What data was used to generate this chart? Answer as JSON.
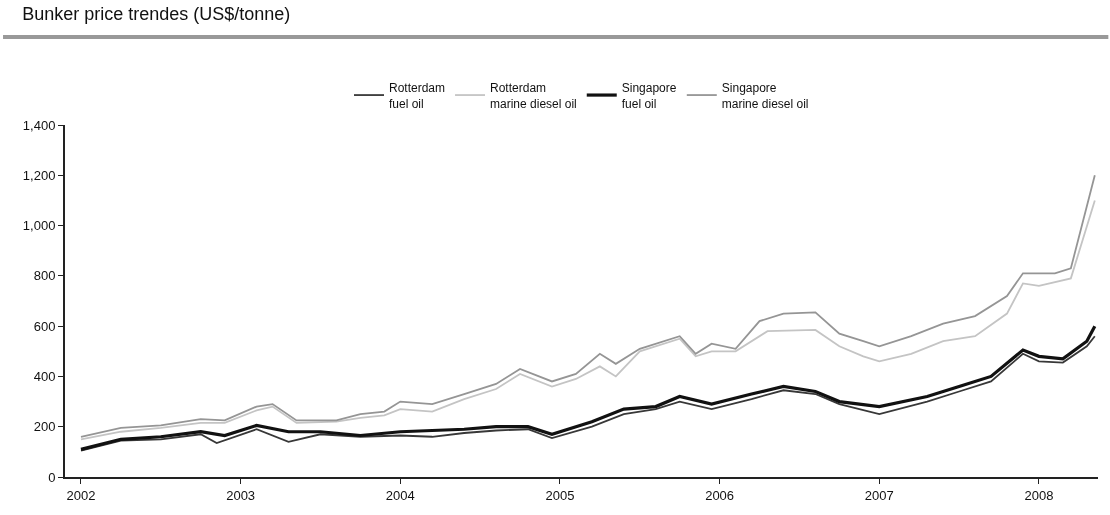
{
  "chart_data": {
    "type": "line",
    "title": "Bunker price trendes (US$/tonne)",
    "xlim": [
      2001.9,
      2008.37
    ],
    "xticks": [
      {
        "value": 2002,
        "label": "2002"
      },
      {
        "value": 2003,
        "label": "2003"
      },
      {
        "value": 2004,
        "label": "2004"
      },
      {
        "value": 2005,
        "label": "2005"
      },
      {
        "value": 2006,
        "label": "2006"
      },
      {
        "value": 2007,
        "label": "2007"
      },
      {
        "value": 2008,
        "label": "2008"
      }
    ],
    "ylim": [
      0,
      1400
    ],
    "yticks": [
      0,
      200,
      400,
      600,
      800,
      {
        "value": 1000,
        "label": "1,000"
      },
      {
        "value": 1200,
        "label": "1,200"
      },
      {
        "value": 1400,
        "label": "1,400"
      }
    ],
    "legend": "top",
    "marker": "none",
    "line_style": "solid",
    "series": [
      {
        "name": "Rotterdam\nfuel oil",
        "color": "#383838",
        "x": [
          2002.0,
          2002.25,
          2002.5,
          2002.75,
          2002.85,
          2003.1,
          2003.3,
          2003.5,
          2003.75,
          2004.0,
          2004.2,
          2004.4,
          2004.6,
          2004.8,
          2004.95,
          2005.2,
          2005.4,
          2005.6,
          2005.75,
          2005.95,
          2006.2,
          2006.4,
          2006.6,
          2006.75,
          2007.0,
          2007.3,
          2007.5,
          2007.7,
          2007.9,
          2008.0,
          2008.15,
          2008.3,
          2008.35
        ],
        "values": [
          105,
          145,
          150,
          170,
          135,
          190,
          140,
          170,
          160,
          165,
          160,
          175,
          185,
          190,
          155,
          200,
          250,
          270,
          300,
          270,
          310,
          345,
          330,
          290,
          250,
          300,
          340,
          380,
          490,
          460,
          455,
          520,
          560
        ]
      },
      {
        "name": "Rotterdam\nmarine diesel oil",
        "color": "#c4c4c4",
        "x": [
          2002.0,
          2002.25,
          2002.5,
          2002.75,
          2002.9,
          2003.1,
          2003.2,
          2003.35,
          2003.6,
          2003.75,
          2003.9,
          2004.0,
          2004.2,
          2004.4,
          2004.6,
          2004.75,
          2004.95,
          2005.1,
          2005.25,
          2005.35,
          2005.5,
          2005.75,
          2005.85,
          2005.95,
          2006.1,
          2006.3,
          2006.6,
          2006.75,
          2006.9,
          2007.0,
          2007.2,
          2007.4,
          2007.6,
          2007.8,
          2007.9,
          2008.0,
          2008.2,
          2008.35
        ],
        "values": [
          150,
          180,
          195,
          215,
          215,
          265,
          280,
          215,
          220,
          235,
          245,
          270,
          260,
          310,
          350,
          410,
          360,
          390,
          440,
          400,
          500,
          550,
          480,
          500,
          500,
          580,
          585,
          520,
          480,
          460,
          490,
          540,
          560,
          650,
          770,
          760,
          790,
          1100
        ]
      },
      {
        "name": "Singapore\nfuel oil",
        "color": "#111111",
        "x": [
          2002.0,
          2002.25,
          2002.5,
          2002.75,
          2002.9,
          2003.1,
          2003.3,
          2003.5,
          2003.75,
          2004.0,
          2004.4,
          2004.6,
          2004.8,
          2004.95,
          2005.2,
          2005.4,
          2005.6,
          2005.75,
          2005.95,
          2006.2,
          2006.4,
          2006.6,
          2006.75,
          2007.0,
          2007.3,
          2007.5,
          2007.7,
          2007.9,
          2008.0,
          2008.15,
          2008.3,
          2008.35
        ],
        "values": [
          110,
          150,
          160,
          180,
          165,
          205,
          180,
          180,
          165,
          180,
          190,
          200,
          200,
          170,
          220,
          270,
          280,
          320,
          290,
          330,
          360,
          340,
          300,
          280,
          320,
          360,
          400,
          505,
          480,
          470,
          540,
          600
        ]
      },
      {
        "name": "Singapore\nmarine diesel oil",
        "color": "#959595",
        "x": [
          2002.0,
          2002.25,
          2002.5,
          2002.75,
          2002.9,
          2003.1,
          2003.2,
          2003.35,
          2003.6,
          2003.75,
          2003.9,
          2004.0,
          2004.2,
          2004.4,
          2004.6,
          2004.75,
          2004.95,
          2005.1,
          2005.25,
          2005.35,
          2005.5,
          2005.75,
          2005.85,
          2005.95,
          2006.1,
          2006.25,
          2006.4,
          2006.6,
          2006.75,
          2006.9,
          2007.0,
          2007.2,
          2007.4,
          2007.6,
          2007.8,
          2007.9,
          2008.1,
          2008.2,
          2008.35
        ],
        "values": [
          160,
          195,
          205,
          230,
          225,
          280,
          290,
          225,
          225,
          250,
          260,
          300,
          290,
          330,
          370,
          430,
          380,
          410,
          490,
          450,
          510,
          560,
          490,
          530,
          510,
          620,
          650,
          655,
          570,
          540,
          520,
          560,
          610,
          640,
          720,
          810,
          810,
          830,
          1200
        ]
      }
    ]
  }
}
